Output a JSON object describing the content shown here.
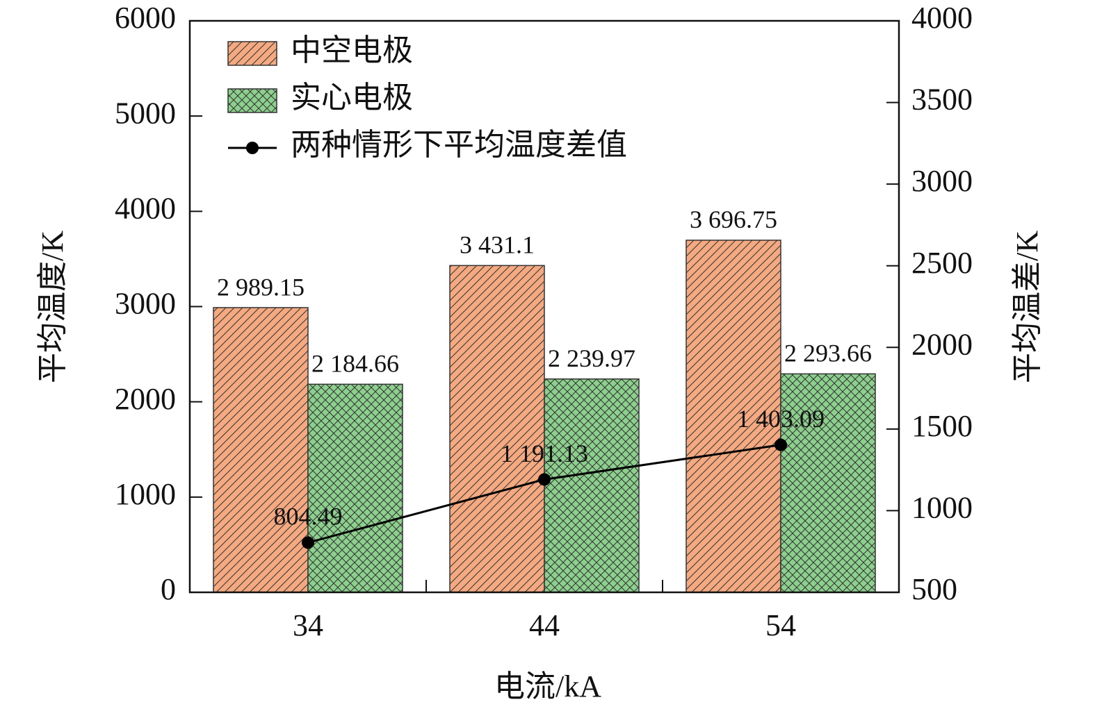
{
  "chart_data": {
    "type": "bar",
    "x_label": "电流/kA",
    "y_label": "平均温度/K",
    "y2_label": "平均温差/K",
    "categories": [
      "34",
      "44",
      "54"
    ],
    "series": [
      {
        "name": "中空电极",
        "color": "#f4a981",
        "pattern": "hatch",
        "values": [
          2989.15,
          3431.1,
          3696.75
        ],
        "value_labels": [
          "2 989.15",
          "3 431.1",
          "3 696.75"
        ]
      },
      {
        "name": "实心电极",
        "color": "#8dd08e",
        "pattern": "crosshatch",
        "values": [
          2184.66,
          2239.97,
          2293.66
        ],
        "value_labels": [
          "2 184.66",
          "2 239.97",
          "2 293.66"
        ]
      },
      {
        "name": "两种情形下平均温度差值",
        "color": "#000000",
        "type": "line",
        "axis": "y2",
        "values": [
          804.49,
          1191.13,
          1403.09
        ],
        "value_labels": [
          "804.49",
          "1 191.13",
          "1 403.09"
        ]
      }
    ],
    "ylim": [
      0,
      6000
    ],
    "yticks": [
      0,
      1000,
      2000,
      3000,
      4000,
      5000,
      6000
    ],
    "y2lim": [
      500,
      4000
    ],
    "y2ticks": [
      500,
      1000,
      1500,
      2000,
      2500,
      3000,
      3500,
      4000
    ],
    "legend": "upper left"
  }
}
